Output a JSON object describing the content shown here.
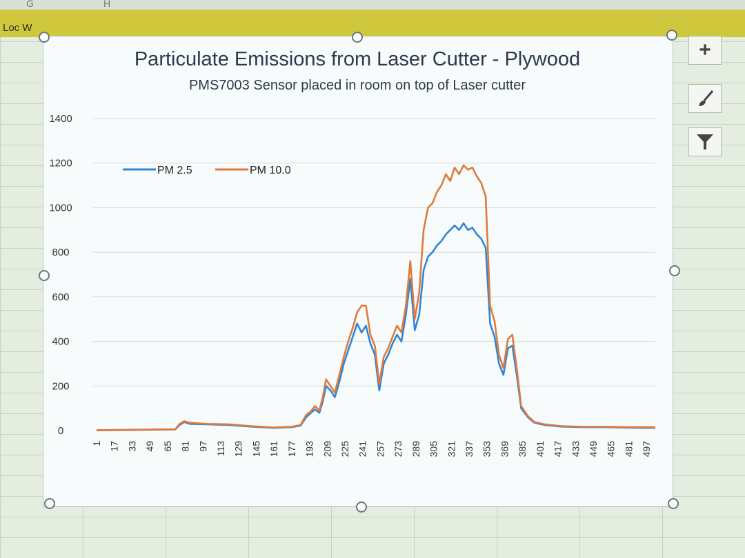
{
  "spreadsheet": {
    "col_letters": [
      "G",
      "H"
    ],
    "cell_label": "Loc W"
  },
  "side_buttons": [
    {
      "icon": "plus-icon",
      "glyph": "+"
    },
    {
      "icon": "brush-icon",
      "glyph": "🖌"
    },
    {
      "icon": "filter-icon",
      "glyph": "⏷"
    }
  ],
  "chart_data": {
    "type": "line",
    "title": "Particulate Emissions from Laser Cutter - Plywood",
    "subtitle": "PMS7003 Sensor placed in room on top of Laser cutter",
    "xlabel": "",
    "ylabel": "",
    "ylim": [
      0,
      1400
    ],
    "yticks": [
      0,
      200,
      400,
      600,
      800,
      1000,
      1200,
      1400
    ],
    "xlim": [
      1,
      505
    ],
    "xticks": [
      1,
      17,
      33,
      49,
      65,
      81,
      97,
      113,
      129,
      145,
      161,
      177,
      193,
      209,
      225,
      241,
      257,
      273,
      289,
      305,
      321,
      337,
      353,
      369,
      385,
      401,
      417,
      433,
      449,
      465,
      481,
      497
    ],
    "grid": true,
    "legend": "top-left",
    "series": [
      {
        "name": "PM 2.5",
        "color": "#2f86d6",
        "points": [
          [
            1,
            1
          ],
          [
            40,
            3
          ],
          [
            72,
            5
          ],
          [
            76,
            25
          ],
          [
            80,
            38
          ],
          [
            85,
            30
          ],
          [
            100,
            28
          ],
          [
            120,
            25
          ],
          [
            140,
            18
          ],
          [
            160,
            12
          ],
          [
            177,
            15
          ],
          [
            185,
            22
          ],
          [
            190,
            60
          ],
          [
            194,
            78
          ],
          [
            198,
            95
          ],
          [
            202,
            80
          ],
          [
            205,
            130
          ],
          [
            208,
            200
          ],
          [
            212,
            180
          ],
          [
            216,
            150
          ],
          [
            220,
            220
          ],
          [
            224,
            300
          ],
          [
            228,
            360
          ],
          [
            232,
            420
          ],
          [
            236,
            480
          ],
          [
            240,
            440
          ],
          [
            244,
            470
          ],
          [
            248,
            390
          ],
          [
            252,
            340
          ],
          [
            256,
            180
          ],
          [
            260,
            300
          ],
          [
            264,
            340
          ],
          [
            268,
            390
          ],
          [
            272,
            430
          ],
          [
            276,
            400
          ],
          [
            280,
            520
          ],
          [
            284,
            680
          ],
          [
            288,
            450
          ],
          [
            292,
            520
          ],
          [
            296,
            720
          ],
          [
            300,
            780
          ],
          [
            304,
            800
          ],
          [
            308,
            830
          ],
          [
            312,
            850
          ],
          [
            316,
            880
          ],
          [
            320,
            900
          ],
          [
            324,
            920
          ],
          [
            328,
            900
          ],
          [
            332,
            930
          ],
          [
            336,
            900
          ],
          [
            340,
            910
          ],
          [
            344,
            880
          ],
          [
            348,
            860
          ],
          [
            352,
            820
          ],
          [
            356,
            480
          ],
          [
            360,
            420
          ],
          [
            364,
            300
          ],
          [
            368,
            250
          ],
          [
            372,
            370
          ],
          [
            376,
            380
          ],
          [
            380,
            250
          ],
          [
            384,
            100
          ],
          [
            390,
            60
          ],
          [
            396,
            35
          ],
          [
            405,
            25
          ],
          [
            420,
            18
          ],
          [
            440,
            15
          ],
          [
            460,
            15
          ],
          [
            480,
            13
          ],
          [
            497,
            12
          ],
          [
            505,
            12
          ]
        ]
      },
      {
        "name": "PM 10.0",
        "color": "#e07a3a",
        "points": [
          [
            1,
            2
          ],
          [
            40,
            4
          ],
          [
            72,
            6
          ],
          [
            76,
            30
          ],
          [
            80,
            42
          ],
          [
            85,
            35
          ],
          [
            100,
            30
          ],
          [
            120,
            28
          ],
          [
            140,
            20
          ],
          [
            160,
            14
          ],
          [
            177,
            17
          ],
          [
            185,
            25
          ],
          [
            190,
            70
          ],
          [
            194,
            85
          ],
          [
            198,
            110
          ],
          [
            202,
            90
          ],
          [
            205,
            150
          ],
          [
            208,
            230
          ],
          [
            212,
            200
          ],
          [
            216,
            170
          ],
          [
            220,
            250
          ],
          [
            224,
            330
          ],
          [
            228,
            400
          ],
          [
            232,
            460
          ],
          [
            236,
            530
          ],
          [
            240,
            560
          ],
          [
            244,
            560
          ],
          [
            248,
            430
          ],
          [
            252,
            380
          ],
          [
            256,
            210
          ],
          [
            260,
            330
          ],
          [
            264,
            370
          ],
          [
            268,
            420
          ],
          [
            272,
            470
          ],
          [
            276,
            440
          ],
          [
            280,
            560
          ],
          [
            284,
            760
          ],
          [
            288,
            500
          ],
          [
            292,
            620
          ],
          [
            296,
            900
          ],
          [
            300,
            1000
          ],
          [
            304,
            1020
          ],
          [
            308,
            1070
          ],
          [
            312,
            1100
          ],
          [
            316,
            1150
          ],
          [
            320,
            1120
          ],
          [
            324,
            1180
          ],
          [
            328,
            1150
          ],
          [
            332,
            1190
          ],
          [
            336,
            1170
          ],
          [
            340,
            1180
          ],
          [
            344,
            1140
          ],
          [
            348,
            1110
          ],
          [
            352,
            1050
          ],
          [
            356,
            560
          ],
          [
            360,
            490
          ],
          [
            364,
            340
          ],
          [
            368,
            280
          ],
          [
            372,
            410
          ],
          [
            376,
            430
          ],
          [
            380,
            280
          ],
          [
            384,
            110
          ],
          [
            390,
            65
          ],
          [
            396,
            38
          ],
          [
            405,
            28
          ],
          [
            420,
            20
          ],
          [
            440,
            17
          ],
          [
            460,
            17
          ],
          [
            480,
            15
          ],
          [
            497,
            15
          ],
          [
            505,
            15
          ]
        ]
      }
    ]
  }
}
